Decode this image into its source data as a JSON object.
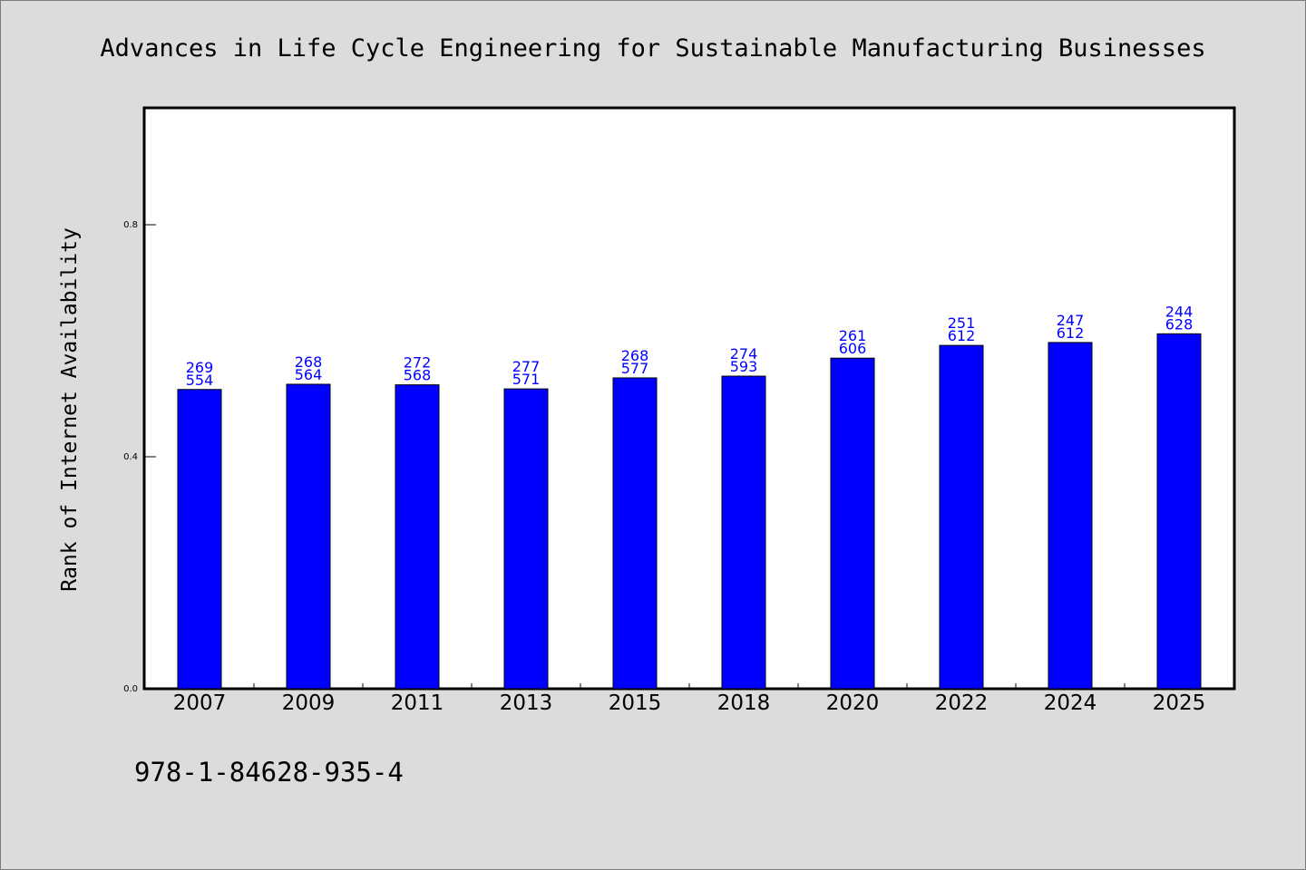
{
  "footer": {
    "isbn": "978-1-84628-935-4"
  },
  "chart_data": {
    "type": "bar",
    "title": "Advances in Life Cycle Engineering for Sustainable Manufacturing Businesses",
    "xlabel": "",
    "ylabel": "Rank of Internet Availability",
    "categories": [
      "2007",
      "2009",
      "2011",
      "2013",
      "2015",
      "2018",
      "2020",
      "2022",
      "2024",
      "2025"
    ],
    "series": [
      {
        "color": "#0000ff",
        "values": [
          0.516,
          0.525,
          0.524,
          0.517,
          0.536,
          0.539,
          0.57,
          0.592,
          0.597,
          0.612
        ],
        "labels_top": [
          "269",
          "268",
          "272",
          "277",
          "268",
          "274",
          "261",
          "251",
          "247",
          "244"
        ],
        "labels_bottom": [
          "554",
          "564",
          "568",
          "571",
          "577",
          "593",
          "606",
          "612",
          "612",
          "628"
        ]
      }
    ],
    "ylim": [
      0,
      1
    ],
    "yticks": [
      0.0,
      0.4,
      0.8
    ],
    "ytick_labels": [
      "0.0",
      "0.4",
      "0.8"
    ],
    "grid": false,
    "legend": "none",
    "colors": {
      "bar": "#0000ff",
      "label": "#0000ff",
      "background": "#dcdcdc",
      "plot_bg": "#ffffff"
    }
  }
}
